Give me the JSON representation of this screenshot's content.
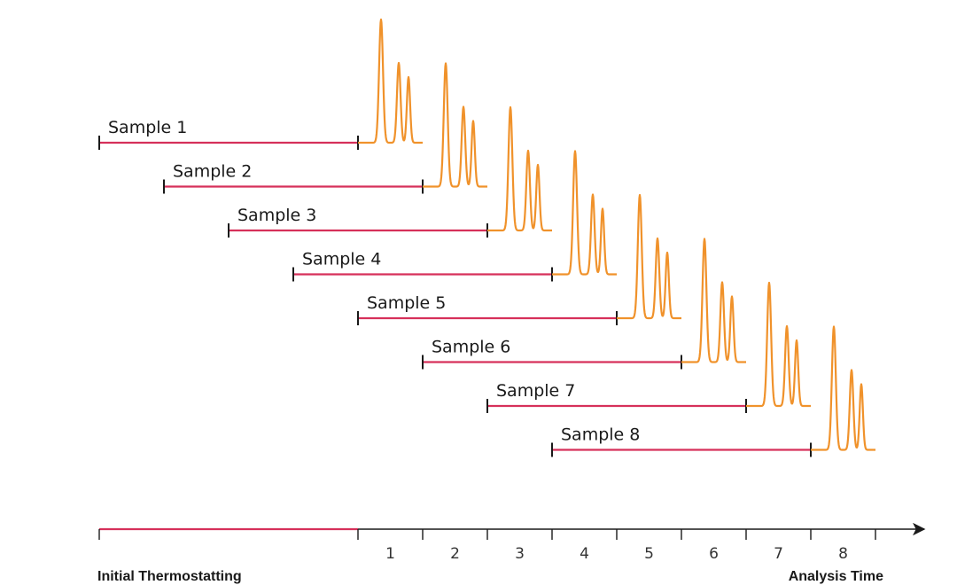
{
  "colors": {
    "thermostat_line": "#d6305a",
    "chromatogram": "#f0922b",
    "axis": "#1a1a1a"
  },
  "samples": [
    {
      "label": "Sample 1",
      "start_slot": 0
    },
    {
      "label": "Sample 2",
      "start_slot": 1
    },
    {
      "label": "Sample 3",
      "start_slot": 2
    },
    {
      "label": "Sample 4",
      "start_slot": 3
    },
    {
      "label": "Sample 5",
      "start_slot": 4
    },
    {
      "label": "Sample 6",
      "start_slot": 5
    },
    {
      "label": "Sample 7",
      "start_slot": 6
    },
    {
      "label": "Sample 8",
      "start_slot": 7
    }
  ],
  "thermostatting_slots": 4,
  "analysis_slots": 1,
  "axis": {
    "tick_labels": [
      "1",
      "2",
      "3",
      "4",
      "5",
      "6",
      "7",
      "8"
    ],
    "left_caption": "Initial Thermostatting",
    "right_caption": "Analysis Time"
  }
}
